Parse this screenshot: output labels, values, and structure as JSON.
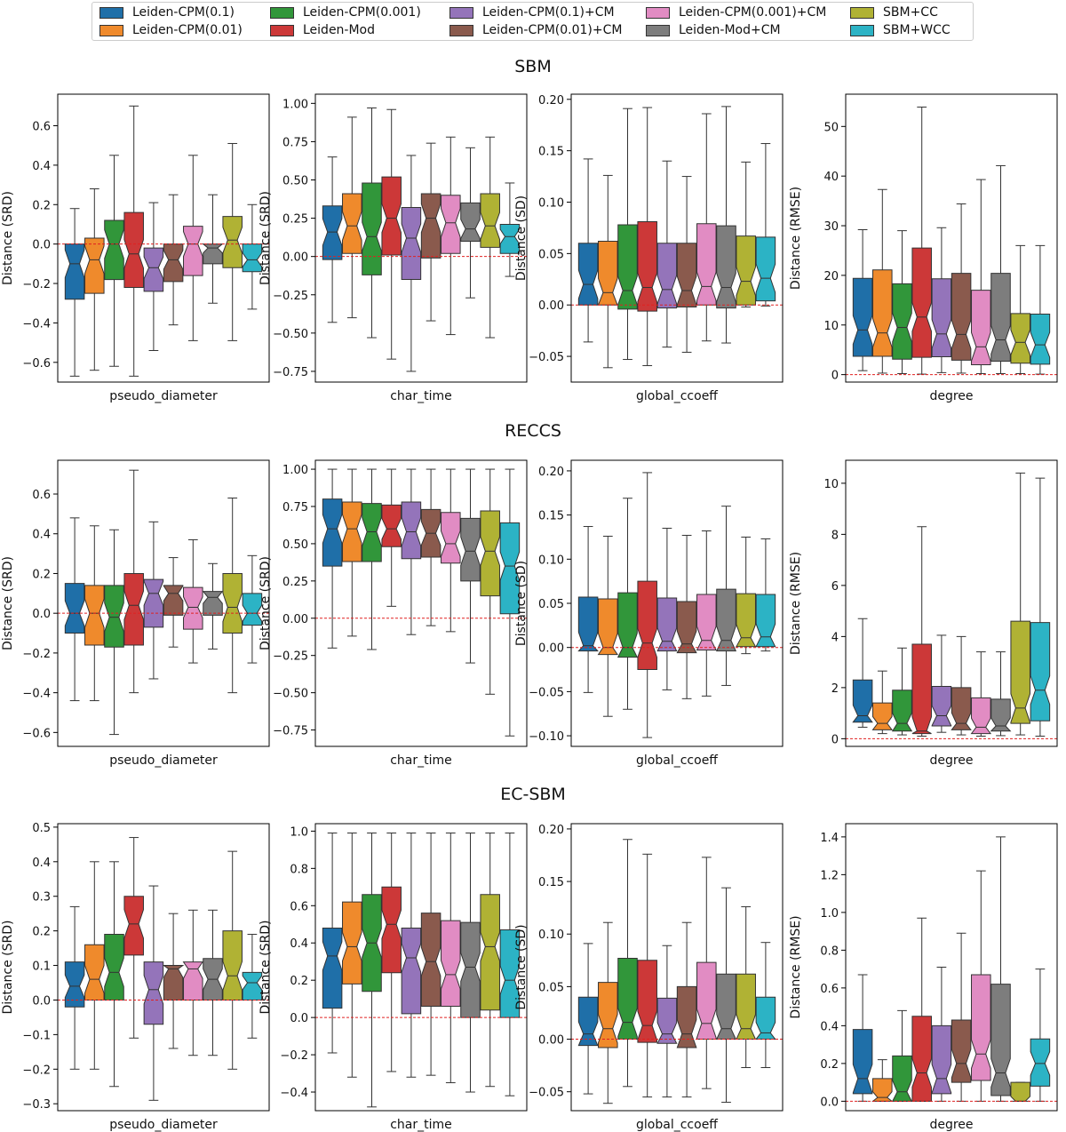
{
  "legend": {
    "entries": [
      {
        "label": "Leiden-CPM(0.1)",
        "color": "#1f6fa8"
      },
      {
        "label": "Leiden-CPM(0.01)",
        "color": "#ef8a2c"
      },
      {
        "label": "Leiden-CPM(0.001)",
        "color": "#31963a"
      },
      {
        "label": "Leiden-Mod",
        "color": "#cc3838"
      },
      {
        "label": "Leiden-CPM(0.1)+CM",
        "color": "#9474ba"
      },
      {
        "label": "Leiden-CPM(0.01)+CM",
        "color": "#8a5a4d"
      },
      {
        "label": "Leiden-CPM(0.001)+CM",
        "color": "#e18cc3"
      },
      {
        "label": "Leiden-Mod+CM",
        "color": "#7d7d7d"
      },
      {
        "label": "SBM+CC",
        "color": "#b0b234"
      },
      {
        "label": "SBM+WCC",
        "color": "#2cb3c5"
      }
    ]
  },
  "sections": [
    {
      "title": "SBM"
    },
    {
      "title": "RECCS"
    },
    {
      "title": "EC-SBM"
    }
  ],
  "chart_data": [
    {
      "type": "box",
      "section": "SBM",
      "xlabel": "pseudo_diameter",
      "ylabel": "Distance (SRD)",
      "ylim": [
        -0.7,
        0.76
      ],
      "yticks": [
        -0.6,
        -0.4,
        -0.2,
        0.0,
        0.2,
        0.4,
        0.6
      ],
      "ytick_labels": [
        "−0.6",
        "−0.4",
        "−0.2",
        "0.0",
        "0.2",
        "0.4",
        "0.6"
      ],
      "reference_line": 0,
      "boxes": [
        [
          -0.67,
          -0.28,
          -0.1,
          0.0,
          0.18
        ],
        [
          -0.64,
          -0.25,
          -0.08,
          0.03,
          0.28
        ],
        [
          -0.62,
          -0.18,
          0.0,
          0.12,
          0.45
        ],
        [
          -0.67,
          -0.22,
          -0.05,
          0.16,
          0.7
        ],
        [
          -0.54,
          -0.24,
          -0.12,
          -0.02,
          0.21
        ],
        [
          -0.41,
          -0.19,
          -0.08,
          0.0,
          0.25
        ],
        [
          -0.49,
          -0.16,
          0.0,
          0.09,
          0.45
        ],
        [
          -0.3,
          -0.1,
          -0.02,
          0.0,
          0.25
        ],
        [
          -0.49,
          -0.12,
          0.02,
          0.14,
          0.51
        ],
        [
          -0.33,
          -0.14,
          -0.08,
          0.0,
          0.2
        ]
      ]
    },
    {
      "type": "box",
      "section": "SBM",
      "xlabel": "char_time",
      "ylabel": "Distance (SRD)",
      "ylim": [
        -0.82,
        1.06
      ],
      "yticks": [
        -0.75,
        -0.5,
        -0.25,
        0.0,
        0.25,
        0.5,
        0.75,
        1.0
      ],
      "ytick_labels": [
        "−0.75",
        "−0.50",
        "−0.25",
        "0.00",
        "0.25",
        "0.50",
        "0.75",
        "1.00"
      ],
      "reference_line": 0,
      "boxes": [
        [
          -0.43,
          -0.02,
          0.16,
          0.33,
          0.65
        ],
        [
          -0.4,
          0.02,
          0.2,
          0.41,
          0.91
        ],
        [
          -0.53,
          -0.12,
          0.13,
          0.48,
          0.97
        ],
        [
          -0.67,
          0.01,
          0.25,
          0.52,
          0.96
        ],
        [
          -0.75,
          -0.15,
          0.12,
          0.32,
          0.66
        ],
        [
          -0.42,
          -0.01,
          0.25,
          0.41,
          0.74
        ],
        [
          -0.51,
          0.02,
          0.22,
          0.4,
          0.78
        ],
        [
          -0.27,
          0.1,
          0.18,
          0.35,
          0.71
        ],
        [
          -0.53,
          0.06,
          0.2,
          0.41,
          0.78
        ],
        [
          -0.13,
          0.02,
          0.13,
          0.21,
          0.48
        ]
      ]
    },
    {
      "type": "box",
      "section": "SBM",
      "xlabel": "global_ccoeff",
      "ylabel": "Distance (SD)",
      "ylim": [
        -0.075,
        0.205
      ],
      "yticks": [
        -0.05,
        0.0,
        0.05,
        0.1,
        0.15,
        0.2
      ],
      "ytick_labels": [
        "−0.05",
        "0.00",
        "0.05",
        "0.10",
        "0.15",
        "0.20"
      ],
      "reference_line": 0,
      "boxes": [
        [
          -0.036,
          0.0,
          0.02,
          0.06,
          0.142
        ],
        [
          -0.061,
          0.0,
          0.012,
          0.062,
          0.126
        ],
        [
          -0.053,
          -0.004,
          0.014,
          0.078,
          0.191
        ],
        [
          -0.059,
          -0.006,
          0.017,
          0.081,
          0.192
        ],
        [
          -0.041,
          -0.003,
          0.015,
          0.06,
          0.14
        ],
        [
          -0.046,
          -0.002,
          0.014,
          0.06,
          0.125
        ],
        [
          -0.035,
          0.0,
          0.018,
          0.079,
          0.186
        ],
        [
          -0.037,
          -0.003,
          0.017,
          0.077,
          0.193
        ],
        [
          -0.002,
          0.0,
          0.023,
          0.067,
          0.139
        ],
        [
          -0.001,
          0.004,
          0.026,
          0.066,
          0.157
        ]
      ]
    },
    {
      "type": "box",
      "section": "SBM",
      "xlabel": "degree",
      "ylabel": "Distance (RMSE)",
      "ylim": [
        -1.5,
        56.5
      ],
      "yticks": [
        0,
        10,
        20,
        30,
        40,
        50
      ],
      "ytick_labels": [
        "0",
        "10",
        "20",
        "30",
        "40",
        "50"
      ],
      "reference_line": 0,
      "boxes": [
        [
          0.8,
          3.7,
          9.0,
          19.4,
          29.2
        ],
        [
          0.3,
          3.7,
          8.4,
          21.1,
          37.3
        ],
        [
          0.2,
          3.1,
          9.5,
          18.3,
          29.0
        ],
        [
          0.1,
          3.5,
          11.6,
          25.5,
          53.9
        ],
        [
          0.4,
          3.6,
          8.2,
          19.3,
          29.6
        ],
        [
          0.3,
          2.9,
          8.1,
          20.4,
          34.4
        ],
        [
          0.2,
          2.0,
          5.6,
          17.0,
          39.3
        ],
        [
          0.2,
          2.7,
          7.0,
          20.4,
          42.1
        ],
        [
          0.2,
          2.3,
          6.5,
          12.3,
          26.0
        ],
        [
          0.1,
          2.1,
          6.0,
          12.2,
          26.0
        ]
      ]
    },
    {
      "type": "box",
      "section": "RECCS",
      "xlabel": "pseudo_diameter",
      "ylabel": "Distance (SRD)",
      "ylim": [
        -0.67,
        0.77
      ],
      "yticks": [
        -0.6,
        -0.4,
        -0.2,
        0.0,
        0.2,
        0.4,
        0.6
      ],
      "ytick_labels": [
        "−0.6",
        "−0.4",
        "−0.2",
        "0.0",
        "0.2",
        "0.4",
        "0.6"
      ],
      "reference_line": 0,
      "boxes": [
        [
          -0.44,
          -0.1,
          0.0,
          0.15,
          0.48
        ],
        [
          -0.44,
          -0.16,
          0.0,
          0.14,
          0.44
        ],
        [
          -0.61,
          -0.17,
          -0.02,
          0.14,
          0.42
        ],
        [
          -0.4,
          -0.16,
          0.04,
          0.2,
          0.72
        ],
        [
          -0.33,
          -0.07,
          0.1,
          0.17,
          0.46
        ],
        [
          -0.17,
          -0.01,
          0.1,
          0.14,
          0.28
        ],
        [
          -0.25,
          -0.08,
          0.03,
          0.13,
          0.37
        ],
        [
          -0.18,
          -0.01,
          0.08,
          0.11,
          0.25
        ],
        [
          -0.4,
          -0.1,
          0.03,
          0.2,
          0.58
        ],
        [
          -0.25,
          -0.06,
          0.0,
          0.1,
          0.29
        ]
      ]
    },
    {
      "type": "box",
      "section": "RECCS",
      "xlabel": "char_time",
      "ylabel": "Distance (SRD)",
      "ylim": [
        -0.86,
        1.06
      ],
      "yticks": [
        -0.75,
        -0.5,
        -0.25,
        0.0,
        0.25,
        0.5,
        0.75,
        1.0
      ],
      "ytick_labels": [
        "−0.75",
        "−0.50",
        "−0.25",
        "0.00",
        "0.25",
        "0.50",
        "0.75",
        "1.00"
      ],
      "reference_line": 0,
      "boxes": [
        [
          -0.2,
          0.35,
          0.6,
          0.8,
          1.0
        ],
        [
          -0.12,
          0.38,
          0.6,
          0.78,
          1.0
        ],
        [
          -0.21,
          0.38,
          0.58,
          0.77,
          1.0
        ],
        [
          0.08,
          0.48,
          0.6,
          0.76,
          1.0
        ],
        [
          -0.11,
          0.4,
          0.58,
          0.78,
          1.0
        ],
        [
          -0.05,
          0.41,
          0.57,
          0.73,
          1.0
        ],
        [
          -0.09,
          0.37,
          0.5,
          0.71,
          1.0
        ],
        [
          -0.3,
          0.25,
          0.45,
          0.67,
          1.0
        ],
        [
          -0.51,
          0.15,
          0.45,
          0.72,
          1.0
        ],
        [
          -0.79,
          0.03,
          0.35,
          0.64,
          1.0
        ]
      ]
    },
    {
      "type": "box",
      "section": "RECCS",
      "xlabel": "global_ccoeff",
      "ylabel": "Distance (SD)",
      "ylim": [
        -0.112,
        0.212
      ],
      "yticks": [
        -0.1,
        -0.05,
        0.0,
        0.05,
        0.1,
        0.15,
        0.2
      ],
      "ytick_labels": [
        "−0.10",
        "−0.05",
        "0.00",
        "0.05",
        "0.10",
        "0.15",
        "0.20"
      ],
      "reference_line": 0,
      "boxes": [
        [
          -0.051,
          -0.004,
          0.002,
          0.057,
          0.137
        ],
        [
          -0.078,
          -0.008,
          0.0,
          0.055,
          0.126
        ],
        [
          -0.07,
          -0.011,
          0.0,
          0.062,
          0.169
        ],
        [
          -0.102,
          -0.025,
          0.005,
          0.075,
          0.198
        ],
        [
          -0.048,
          -0.004,
          0.007,
          0.056,
          0.135
        ],
        [
          -0.058,
          -0.006,
          0.004,
          0.052,
          0.127
        ],
        [
          -0.055,
          -0.003,
          0.008,
          0.06,
          0.132
        ],
        [
          -0.043,
          -0.004,
          0.008,
          0.066,
          0.16
        ],
        [
          -0.007,
          0.001,
          0.011,
          0.061,
          0.125
        ],
        [
          -0.004,
          0.001,
          0.012,
          0.06,
          0.123
        ]
      ]
    },
    {
      "type": "box",
      "section": "RECCS",
      "xlabel": "degree",
      "ylabel": "Distance (RMSE)",
      "ylim": [
        -0.3,
        10.9
      ],
      "yticks": [
        0,
        2,
        4,
        6,
        8,
        10
      ],
      "ytick_labels": [
        "0",
        "2",
        "4",
        "6",
        "8",
        "10"
      ],
      "reference_line": 0,
      "boxes": [
        [
          0.45,
          0.65,
          0.9,
          2.3,
          4.7
        ],
        [
          0.2,
          0.35,
          0.6,
          1.4,
          2.65
        ],
        [
          0.15,
          0.3,
          0.6,
          1.9,
          3.55
        ],
        [
          0.1,
          0.2,
          0.3,
          3.7,
          8.3
        ],
        [
          0.25,
          0.5,
          0.9,
          2.05,
          4.05
        ],
        [
          0.15,
          0.35,
          0.6,
          2.0,
          4.0
        ],
        [
          0.1,
          0.2,
          0.45,
          1.6,
          3.4
        ],
        [
          0.12,
          0.3,
          0.5,
          1.55,
          3.4
        ],
        [
          0.15,
          0.6,
          1.2,
          4.6,
          10.4
        ],
        [
          0.1,
          0.7,
          1.9,
          4.55,
          10.2
        ]
      ]
    },
    {
      "type": "box",
      "section": "EC-SBM",
      "xlabel": "pseudo_diameter",
      "ylabel": "Distance (SRD)",
      "ylim": [
        -0.32,
        0.51
      ],
      "yticks": [
        -0.3,
        -0.2,
        -0.1,
        0.0,
        0.1,
        0.2,
        0.3,
        0.4,
        0.5
      ],
      "ytick_labels": [
        "−0.3",
        "−0.2",
        "−0.1",
        "0.0",
        "0.1",
        "0.2",
        "0.3",
        "0.4",
        "0.5"
      ],
      "reference_line": 0,
      "boxes": [
        [
          -0.2,
          -0.02,
          0.04,
          0.11,
          0.27
        ],
        [
          -0.2,
          0.0,
          0.06,
          0.16,
          0.4
        ],
        [
          -0.25,
          0.0,
          0.08,
          0.19,
          0.4
        ],
        [
          -0.11,
          0.13,
          0.22,
          0.3,
          0.47
        ],
        [
          -0.29,
          -0.07,
          0.03,
          0.11,
          0.33
        ],
        [
          -0.14,
          0.0,
          0.09,
          0.1,
          0.25
        ],
        [
          -0.16,
          0.0,
          0.09,
          0.11,
          0.26
        ],
        [
          -0.16,
          0.0,
          0.06,
          0.12,
          0.26
        ],
        [
          -0.2,
          0.0,
          0.07,
          0.2,
          0.43
        ],
        [
          -0.11,
          0.0,
          0.05,
          0.08,
          0.19
        ]
      ]
    },
    {
      "type": "box",
      "section": "EC-SBM",
      "xlabel": "char_time",
      "ylabel": "Distance (SRD)",
      "ylim": [
        -0.5,
        1.04
      ],
      "yticks": [
        -0.4,
        -0.2,
        0.0,
        0.2,
        0.4,
        0.6,
        0.8,
        1.0
      ],
      "ytick_labels": [
        "−0.4",
        "−0.2",
        "0.0",
        "0.2",
        "0.4",
        "0.6",
        "0.8",
        "1.0"
      ],
      "reference_line": 0,
      "boxes": [
        [
          -0.19,
          0.05,
          0.33,
          0.48,
          0.99
        ],
        [
          -0.32,
          0.18,
          0.38,
          0.62,
          0.99
        ],
        [
          -0.48,
          0.14,
          0.4,
          0.66,
          0.99
        ],
        [
          -0.29,
          0.24,
          0.5,
          0.7,
          0.99
        ],
        [
          -0.32,
          0.02,
          0.32,
          0.48,
          0.99
        ],
        [
          -0.31,
          0.06,
          0.3,
          0.56,
          0.99
        ],
        [
          -0.35,
          0.06,
          0.23,
          0.52,
          0.99
        ],
        [
          -0.4,
          0.0,
          0.27,
          0.51,
          0.99
        ],
        [
          -0.37,
          0.04,
          0.38,
          0.66,
          0.99
        ],
        [
          -0.42,
          0.0,
          0.2,
          0.47,
          0.99
        ]
      ]
    },
    {
      "type": "box",
      "section": "EC-SBM",
      "xlabel": "global_ccoeff",
      "ylabel": "Distance (SD)",
      "ylim": [
        -0.068,
        0.205
      ],
      "yticks": [
        -0.05,
        0.0,
        0.05,
        0.1,
        0.15,
        0.2
      ],
      "ytick_labels": [
        "−0.05",
        "0.00",
        "0.05",
        "0.10",
        "0.15",
        "0.20"
      ],
      "reference_line": 0,
      "boxes": [
        [
          -0.052,
          -0.006,
          0.005,
          0.04,
          0.091
        ],
        [
          -0.061,
          -0.008,
          0.01,
          0.054,
          0.111
        ],
        [
          -0.045,
          0.0,
          0.016,
          0.077,
          0.19
        ],
        [
          -0.055,
          -0.003,
          0.013,
          0.075,
          0.176
        ],
        [
          -0.055,
          -0.004,
          0.005,
          0.039,
          0.089
        ],
        [
          -0.055,
          -0.008,
          0.005,
          0.05,
          0.111
        ],
        [
          -0.047,
          0.0,
          0.015,
          0.073,
          0.173
        ],
        [
          -0.06,
          0.0,
          0.01,
          0.062,
          0.144
        ],
        [
          -0.027,
          0.0,
          0.01,
          0.062,
          0.126
        ],
        [
          -0.027,
          0.0,
          0.006,
          0.04,
          0.092
        ]
      ]
    },
    {
      "type": "box",
      "section": "EC-SBM",
      "xlabel": "degree",
      "ylabel": "Distance (RMSE)",
      "ylim": [
        -0.05,
        1.47
      ],
      "yticks": [
        0.0,
        0.2,
        0.4,
        0.6,
        0.8,
        1.0,
        1.2,
        1.4
      ],
      "ytick_labels": [
        "0.0",
        "0.2",
        "0.4",
        "0.6",
        "0.8",
        "1.0",
        "1.2",
        "1.4"
      ],
      "reference_line": 0,
      "boxes": [
        [
          0.0,
          0.04,
          0.12,
          0.38,
          0.67
        ],
        [
          0.0,
          0.0,
          0.02,
          0.12,
          0.22
        ],
        [
          0.0,
          0.0,
          0.05,
          0.24,
          0.48
        ],
        [
          0.0,
          0.0,
          0.15,
          0.45,
          0.97
        ],
        [
          0.0,
          0.04,
          0.12,
          0.4,
          0.71
        ],
        [
          0.0,
          0.1,
          0.2,
          0.43,
          0.89
        ],
        [
          0.0,
          0.11,
          0.25,
          0.67,
          1.22
        ],
        [
          0.0,
          0.03,
          0.15,
          0.62,
          1.4
        ],
        [
          0.0,
          0.0,
          0.0,
          0.1,
          0.1
        ],
        [
          0.0,
          0.08,
          0.2,
          0.33,
          0.7
        ]
      ]
    }
  ]
}
